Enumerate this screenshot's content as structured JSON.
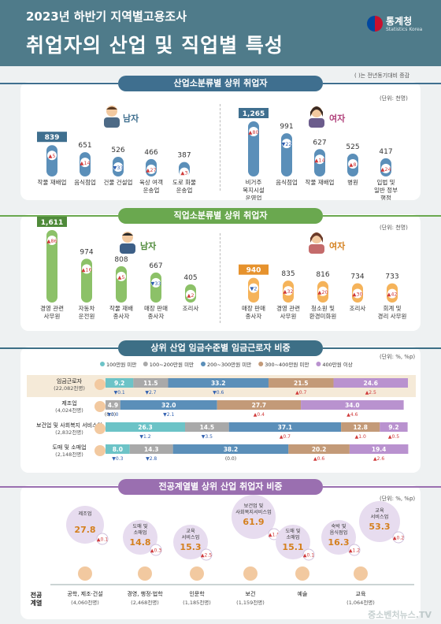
{
  "header": {
    "subtitle": "2023년 하반기 지역별고용조사",
    "title": "취업자의 산업 및 직업별 특성",
    "logo_name": "통계청",
    "logo_en": "Statistics Korea"
  },
  "note": "( )는 전년동기대비 증감",
  "colors": {
    "blue": "#5b8fb9",
    "green": "#8cc168",
    "orange": "#f5b35a",
    "purple": "#b992cf",
    "gray": "#a9a9a9"
  },
  "industry_section": {
    "title": "산업소분류별 상위 취업자",
    "unit": "(단위: 천명)",
    "male_label": "남자",
    "female_label": "여자"
  },
  "occupation_section": {
    "title": "직업소분류별 상위 취업자",
    "unit": "(단위: 천명)",
    "male_label": "남자",
    "female_label": "여자"
  },
  "wage_section": {
    "title": "상위 산업 임금수준별 임금근로자 비중",
    "unit": "(단위: %, %p)"
  },
  "major_section": {
    "title": "전공계열별 상위 산업 취업자 비중",
    "unit": "(단위: %, %p)",
    "row_label": "전공\n계열"
  },
  "watermark": "중소벤처뉴스.TV",
  "chart_data": [
    {
      "type": "bar",
      "title": "산업소분류별 상위 취업자",
      "series": [
        {
          "name": "남자",
          "categories": [
            "작물 재배업",
            "음식점업",
            "건물 건설업",
            "육상 여객 운송업",
            "도로 화물 운송업"
          ],
          "values": [
            839,
            651,
            526,
            466,
            387
          ],
          "changes": [
            "5",
            "14",
            "33",
            "27",
            "3"
          ],
          "change_dir": [
            "up",
            "up",
            "down",
            "up",
            "up"
          ]
        },
        {
          "name": "여자",
          "categories": [
            "비거주 복지시설 운영업",
            "음식점업",
            "작물 재배업",
            "병원",
            "입법 및 일반 정부 행정"
          ],
          "values": [
            1265,
            991,
            627,
            525,
            417
          ],
          "changes": [
            "80",
            "22",
            "14",
            "8",
            "24"
          ],
          "change_dir": [
            "up",
            "down",
            "up",
            "up",
            "up"
          ]
        }
      ]
    },
    {
      "type": "bar",
      "title": "직업소분류별 상위 취업자",
      "series": [
        {
          "name": "남자",
          "categories": [
            "경영 관련 사무원",
            "자동차 운전원",
            "작물 재배 종사자",
            "매장 판매 종사자",
            "조리사"
          ],
          "values": [
            1611,
            974,
            808,
            667,
            405
          ],
          "changes": [
            "86",
            "16",
            "5",
            "33",
            "2"
          ],
          "change_dir": [
            "up",
            "up",
            "up",
            "down",
            "up"
          ]
        },
        {
          "name": "여자",
          "categories": [
            "매장 판매 종사자",
            "경영 관련 사무원",
            "청소원 및 환경미화원",
            "조리사",
            "회계 및 경리 사무원"
          ],
          "values": [
            940,
            835,
            816,
            734,
            733
          ],
          "changes": [
            "2",
            "32",
            "20",
            "30",
            "42"
          ],
          "change_dir": [
            "down",
            "up",
            "up",
            "up",
            "up"
          ]
        }
      ]
    },
    {
      "type": "bar",
      "title": "상위 산업 임금수준별 임금근로자 비중",
      "legend": [
        "100만원 미만",
        "100~200만원 미만",
        "200~300만원 미만",
        "300~400만원 미만",
        "400만원 이상"
      ],
      "rows": [
        {
          "name": "임금근로자",
          "count": "(22,082천명)",
          "values": [
            9.2,
            11.5,
            33.2,
            21.5,
            24.6
          ],
          "labels": [
            "9.2",
            "11.5",
            "33.2",
            "21.5",
            "24.6"
          ],
          "changes": [
            "▼0.1",
            "▼2.7",
            "▼0.6",
            "▲0.7",
            "▲2.5"
          ]
        },
        {
          "name": "제조업",
          "count": "(4,024천명)",
          "values": [
            0.0,
            4.9,
            32.0,
            27.7,
            34.0
          ],
          "labels": [
            "",
            "4.9",
            "32.0",
            "27.7",
            "34.0"
          ],
          "changes": [
            "(0.0)",
            "▼3.0",
            "▼2.1",
            "▲0.4",
            "▲4.6"
          ]
        },
        {
          "name": "보건업 및 사회복지 서비스업",
          "count": "(2,832천명)",
          "values": [
            26.3,
            14.5,
            37.1,
            12.8,
            9.2
          ],
          "labels": [
            "26.3",
            "14.5",
            "37.1",
            "12.8",
            "9.2"
          ],
          "changes": [
            "▼1.2",
            "▼3.5",
            "▲0.7",
            "▲1.0",
            "▲0.5"
          ]
        },
        {
          "name": "도매 및 소매업",
          "count": "(2,148천명)",
          "values": [
            8.0,
            14.3,
            38.2,
            20.2,
            19.4
          ],
          "labels": [
            "8.0",
            "14.3",
            "38.2",
            "20.2",
            "19.4"
          ],
          "changes": [
            "▼0.3",
            "▼2.8",
            "(0.0)",
            "▲0.6",
            "▲2.6"
          ]
        }
      ]
    },
    {
      "type": "bar",
      "title": "전공계열별 상위 산업 취업자 비중",
      "groups": [
        {
          "major": "공학, 제조·건설",
          "count": "(4,060천명)",
          "industries": [
            {
              "name": "제조업",
              "value": 27.8,
              "change": "▲0.1"
            }
          ]
        },
        {
          "major": "경영, 행정·법학",
          "count": "(2,468천명)",
          "industries": [
            {
              "name": "도매 및 소매업",
              "value": 14.8,
              "change": "▲0.3"
            }
          ]
        },
        {
          "major": "인문학",
          "count": "(1,185천명)",
          "industries": [
            {
              "name": "교육 서비스업",
              "value": 15.3,
              "change": "▲2.5"
            }
          ]
        },
        {
          "major": "보건",
          "count": "(1,159천명)",
          "industries": [
            {
              "name": "보건업 및 사회복지서비스업",
              "value": 61.9,
              "change": "▲1.8"
            }
          ]
        },
        {
          "major": "예술",
          "count": "",
          "industries": [
            {
              "name": "도매 및 소매업",
              "value": 15.1,
              "change": "▲0.1"
            },
            {
              "name": "숙박 및 음식점업",
              "value": 16.3,
              "change": "▲1.2"
            }
          ]
        },
        {
          "major": "교육",
          "count": "(1,064천명)",
          "industries": [
            {
              "name": "교육 서비스업",
              "value": 53.3,
              "change": "▲0.2"
            }
          ]
        }
      ]
    }
  ]
}
